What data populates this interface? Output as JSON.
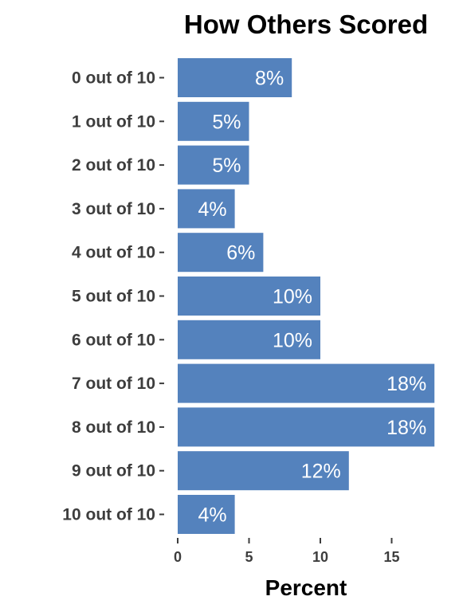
{
  "chart_data": {
    "type": "bar",
    "orientation": "horizontal",
    "title": "How Others Scored",
    "xlabel": "Percent",
    "ylabel": "",
    "categories": [
      "0 out of 10",
      "1 out of 10",
      "2 out of 10",
      "3 out of 10",
      "4 out of 10",
      "5 out of 10",
      "6 out of 10",
      "7 out of 10",
      "8 out of 10",
      "9 out of 10",
      "10 out of 10"
    ],
    "values": [
      8,
      5,
      5,
      4,
      6,
      10,
      10,
      18,
      18,
      12,
      4
    ],
    "data_labels": [
      "8%",
      "5%",
      "5%",
      "4%",
      "6%",
      "10%",
      "10%",
      "18%",
      "18%",
      "12%",
      "4%"
    ],
    "xticks": [
      0,
      5,
      10,
      15
    ],
    "xlim": [
      0,
      18
    ],
    "grid": false,
    "legend": "none",
    "bar_color": "#5482bd"
  }
}
